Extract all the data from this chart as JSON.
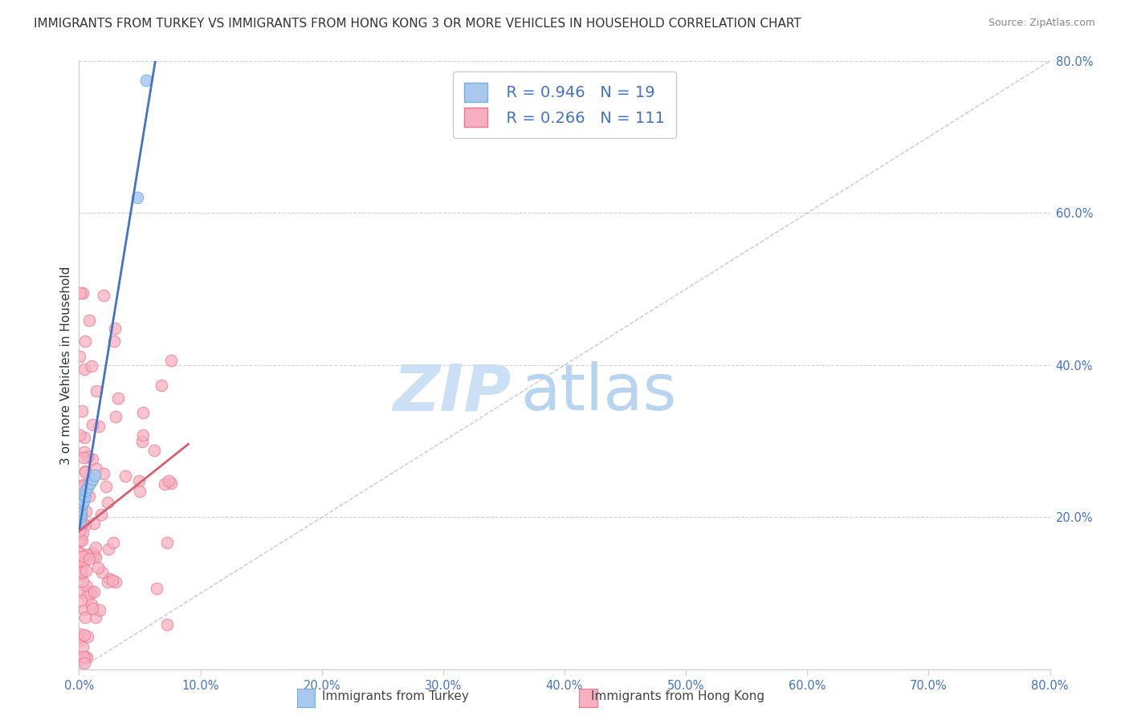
{
  "title": "IMMIGRANTS FROM TURKEY VS IMMIGRANTS FROM HONG KONG 3 OR MORE VEHICLES IN HOUSEHOLD CORRELATION CHART",
  "source": "Source: ZipAtlas.com",
  "xlabel_legend1": "Immigrants from Turkey",
  "xlabel_legend2": "Immigrants from Hong Kong",
  "ylabel": "3 or more Vehicles in Household",
  "xlim": [
    0.0,
    0.8
  ],
  "ylim": [
    0.0,
    0.8
  ],
  "turkey_color": "#a8c8f0",
  "turkey_edge": "#7bafd4",
  "hk_color": "#f8b0c0",
  "hk_edge": "#e87890",
  "turkey_R": 0.946,
  "turkey_N": 19,
  "hk_R": 0.266,
  "hk_N": 111,
  "turkey_line_color": "#4472c4",
  "hk_line_color": "#d46070",
  "watermark_zip_color": "#cce0f5",
  "watermark_atlas_color": "#b8d4ef",
  "background_color": "#ffffff",
  "grid_color": "#cccccc",
  "tick_color": "#4472c4",
  "title_color": "#333333",
  "ylabel_color": "#333333",
  "source_color": "#888888"
}
